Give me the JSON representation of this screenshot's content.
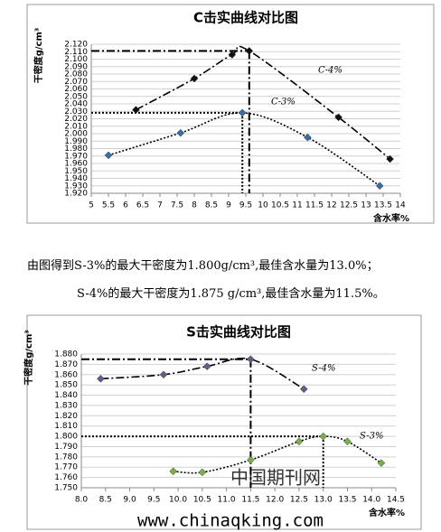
{
  "chart_data": [
    {
      "type": "line",
      "title": "C击实曲线对比图",
      "y_label": "干密度g/cm³",
      "x_label": "含水率%",
      "xlim": [
        5,
        14
      ],
      "ylim": [
        1.92,
        2.12
      ],
      "xticks": [
        5,
        5.5,
        6,
        6.5,
        7,
        7.5,
        8,
        8.5,
        9,
        9.5,
        10,
        10.5,
        11,
        11.5,
        12,
        12.5,
        13,
        13.5,
        14
      ],
      "yticks": [
        {
          "value": 1.92,
          "label": "1.920"
        },
        {
          "value": 1.93,
          "label": "1.930"
        },
        {
          "value": 1.94,
          "label": "1.940"
        },
        {
          "value": 1.95,
          "label": "1.950"
        },
        {
          "value": 1.96,
          "label": "1.960"
        },
        {
          "value": 1.97,
          "label": "1.970"
        },
        {
          "value": 1.98,
          "label": "1.980"
        },
        {
          "value": 1.99,
          "label": "1.990"
        },
        {
          "value": 2.0,
          "label": "2.000"
        },
        {
          "value": 2.01,
          "label": "2.010"
        },
        {
          "value": 2.02,
          "label": "2.020"
        },
        {
          "value": 2.03,
          "label": "2.030"
        },
        {
          "value": 2.04,
          "label": "2.040"
        },
        {
          "value": 2.05,
          "label": "2.050"
        },
        {
          "value": 2.06,
          "label": "2.060"
        },
        {
          "value": 2.07,
          "label": "2.070"
        },
        {
          "value": 2.08,
          "label": "2.080"
        },
        {
          "value": 2.09,
          "label": "2.090"
        },
        {
          "value": 2.1,
          "label": "2.100"
        },
        {
          "value": 2.11,
          "label": "2.110"
        },
        {
          "value": 2.12,
          "label": "2.120"
        }
      ],
      "grid": true,
      "series": [
        {
          "name": "C-4%",
          "color": "#111111",
          "line_style": "dash-dot",
          "x": [
            6.3,
            8.0,
            9.1,
            9.6,
            12.2,
            13.7
          ],
          "values": [
            2.032,
            2.074,
            2.106,
            2.111,
            2.022,
            1.966
          ]
        },
        {
          "name": "C-3%",
          "color": "#3b6ea5",
          "line_style": "dotted",
          "x": [
            5.5,
            7.6,
            9.4,
            11.3,
            13.4
          ],
          "values": [
            1.971,
            2.001,
            2.028,
            1.995,
            1.93
          ]
        }
      ]
    },
    {
      "type": "line",
      "title": "S击实曲线对比图",
      "y_label": "干密度g/cm³",
      "x_label": "含水率%",
      "xlim": [
        8.0,
        14.5
      ],
      "ylim": [
        1.75,
        1.88
      ],
      "xticks": [
        {
          "value": 8,
          "label": "8.0"
        },
        8.5,
        {
          "value": 9,
          "label": "9.0"
        },
        9.5,
        {
          "value": 10,
          "label": "10.0"
        },
        10.5,
        {
          "value": 11,
          "label": "11.0"
        },
        11.5,
        {
          "value": 12,
          "label": "12.0"
        },
        12.5,
        {
          "value": 13,
          "label": "13.0"
        },
        13.5,
        {
          "value": 14,
          "label": "14.0"
        },
        14.5
      ],
      "yticks": [
        {
          "value": 1.75,
          "label": "1.750"
        },
        {
          "value": 1.76,
          "label": "1.760"
        },
        {
          "value": 1.77,
          "label": "1.770"
        },
        {
          "value": 1.78,
          "label": "1.780"
        },
        {
          "value": 1.79,
          "label": "1.790"
        },
        {
          "value": 1.8,
          "label": "1.800"
        },
        {
          "value": 1.81,
          "label": "1.810"
        },
        {
          "value": 1.82,
          "label": "1.820"
        },
        {
          "value": 1.83,
          "label": "1.830"
        },
        {
          "value": 1.84,
          "label": "1.840"
        },
        {
          "value": 1.85,
          "label": "1.850"
        },
        {
          "value": 1.86,
          "label": "1.860"
        },
        {
          "value": 1.87,
          "label": "1.870"
        },
        {
          "value": 1.88,
          "label": "1.880"
        }
      ],
      "grid": true,
      "series": [
        {
          "name": "S-4%",
          "color": "#6a5a8a",
          "line_style": "dash-dot",
          "x": [
            8.4,
            9.7,
            10.6,
            11.5,
            12.6
          ],
          "values": [
            1.856,
            1.86,
            1.868,
            1.875,
            1.846
          ]
        },
        {
          "name": "S-3%",
          "color": "#7ab04a",
          "line_style": "dotted",
          "x": [
            9.9,
            10.5,
            11.5,
            12.5,
            13.0,
            13.5,
            14.2
          ],
          "values": [
            1.766,
            1.765,
            1.777,
            1.795,
            1.8,
            1.795,
            1.774
          ]
        }
      ]
    }
  ],
  "text": {
    "paragraphs": [
      "由图得到S-3%的最大干密度为1.800g/cm³,最佳含水量为13.0%；",
      "S-4%的最大干密度为1.875 g/cm³,最佳含水量为11.5%。"
    ]
  },
  "watermark": {
    "site_name": "中国期刊网",
    "url": "www.chinaqking.com"
  }
}
